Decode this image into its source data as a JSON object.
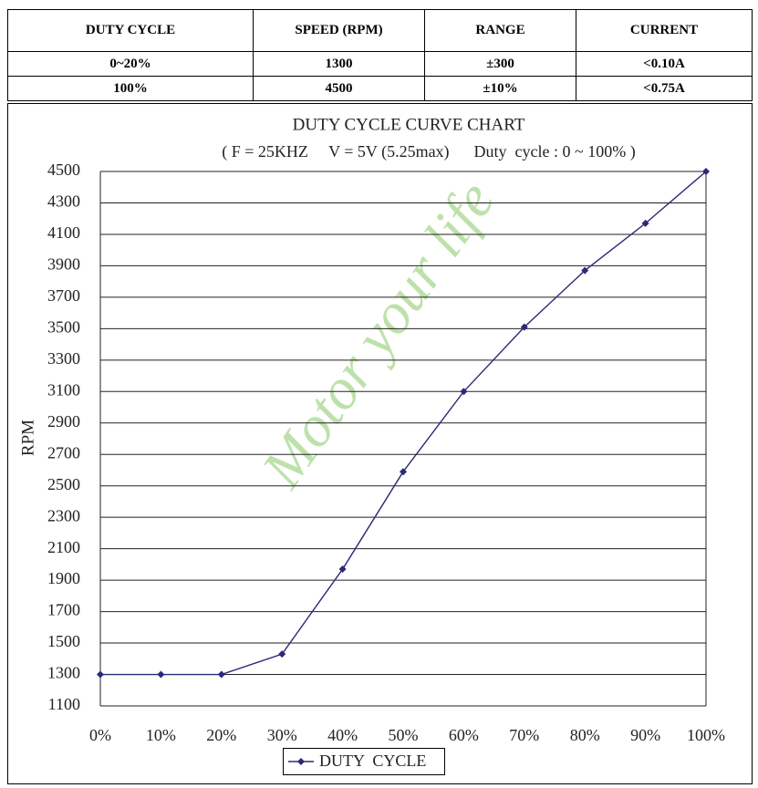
{
  "table": {
    "header": [
      "DUTY CYCLE",
      "SPEED (RPM)",
      "RANGE",
      "CURRENT"
    ],
    "rows": [
      [
        "0~20%",
        "1300",
        "±300",
        "<0.10A"
      ],
      [
        "100%",
        "4500",
        "±10%",
        "<0.75A"
      ]
    ]
  },
  "chart_data": {
    "type": "line",
    "title": "DUTY CYCLE CURVE CHART",
    "subtitle": "( F = 25KHZ     V = 5V (5.25max)      Duty  cycle : 0 ~ 100% )",
    "watermark": "Motor your life",
    "y_label": "RPM",
    "categories": [
      "0%",
      "10%",
      "20%",
      "30%",
      "40%",
      "50%",
      "60%",
      "70%",
      "80%",
      "90%",
      "100%"
    ],
    "series": [
      {
        "name": "DUTY  CYCLE",
        "color": "#2b2a78",
        "values": [
          1300,
          1300,
          1300,
          1430,
          1970,
          2590,
          3100,
          3510,
          3870,
          4170,
          4500
        ]
      }
    ],
    "ylim": [
      1100,
      4500
    ],
    "yticks": [
      1100,
      1300,
      1500,
      1700,
      1900,
      2100,
      2300,
      2500,
      2700,
      2900,
      3100,
      3300,
      3500,
      3700,
      3900,
      4100,
      4300,
      4500
    ],
    "grid": true
  }
}
